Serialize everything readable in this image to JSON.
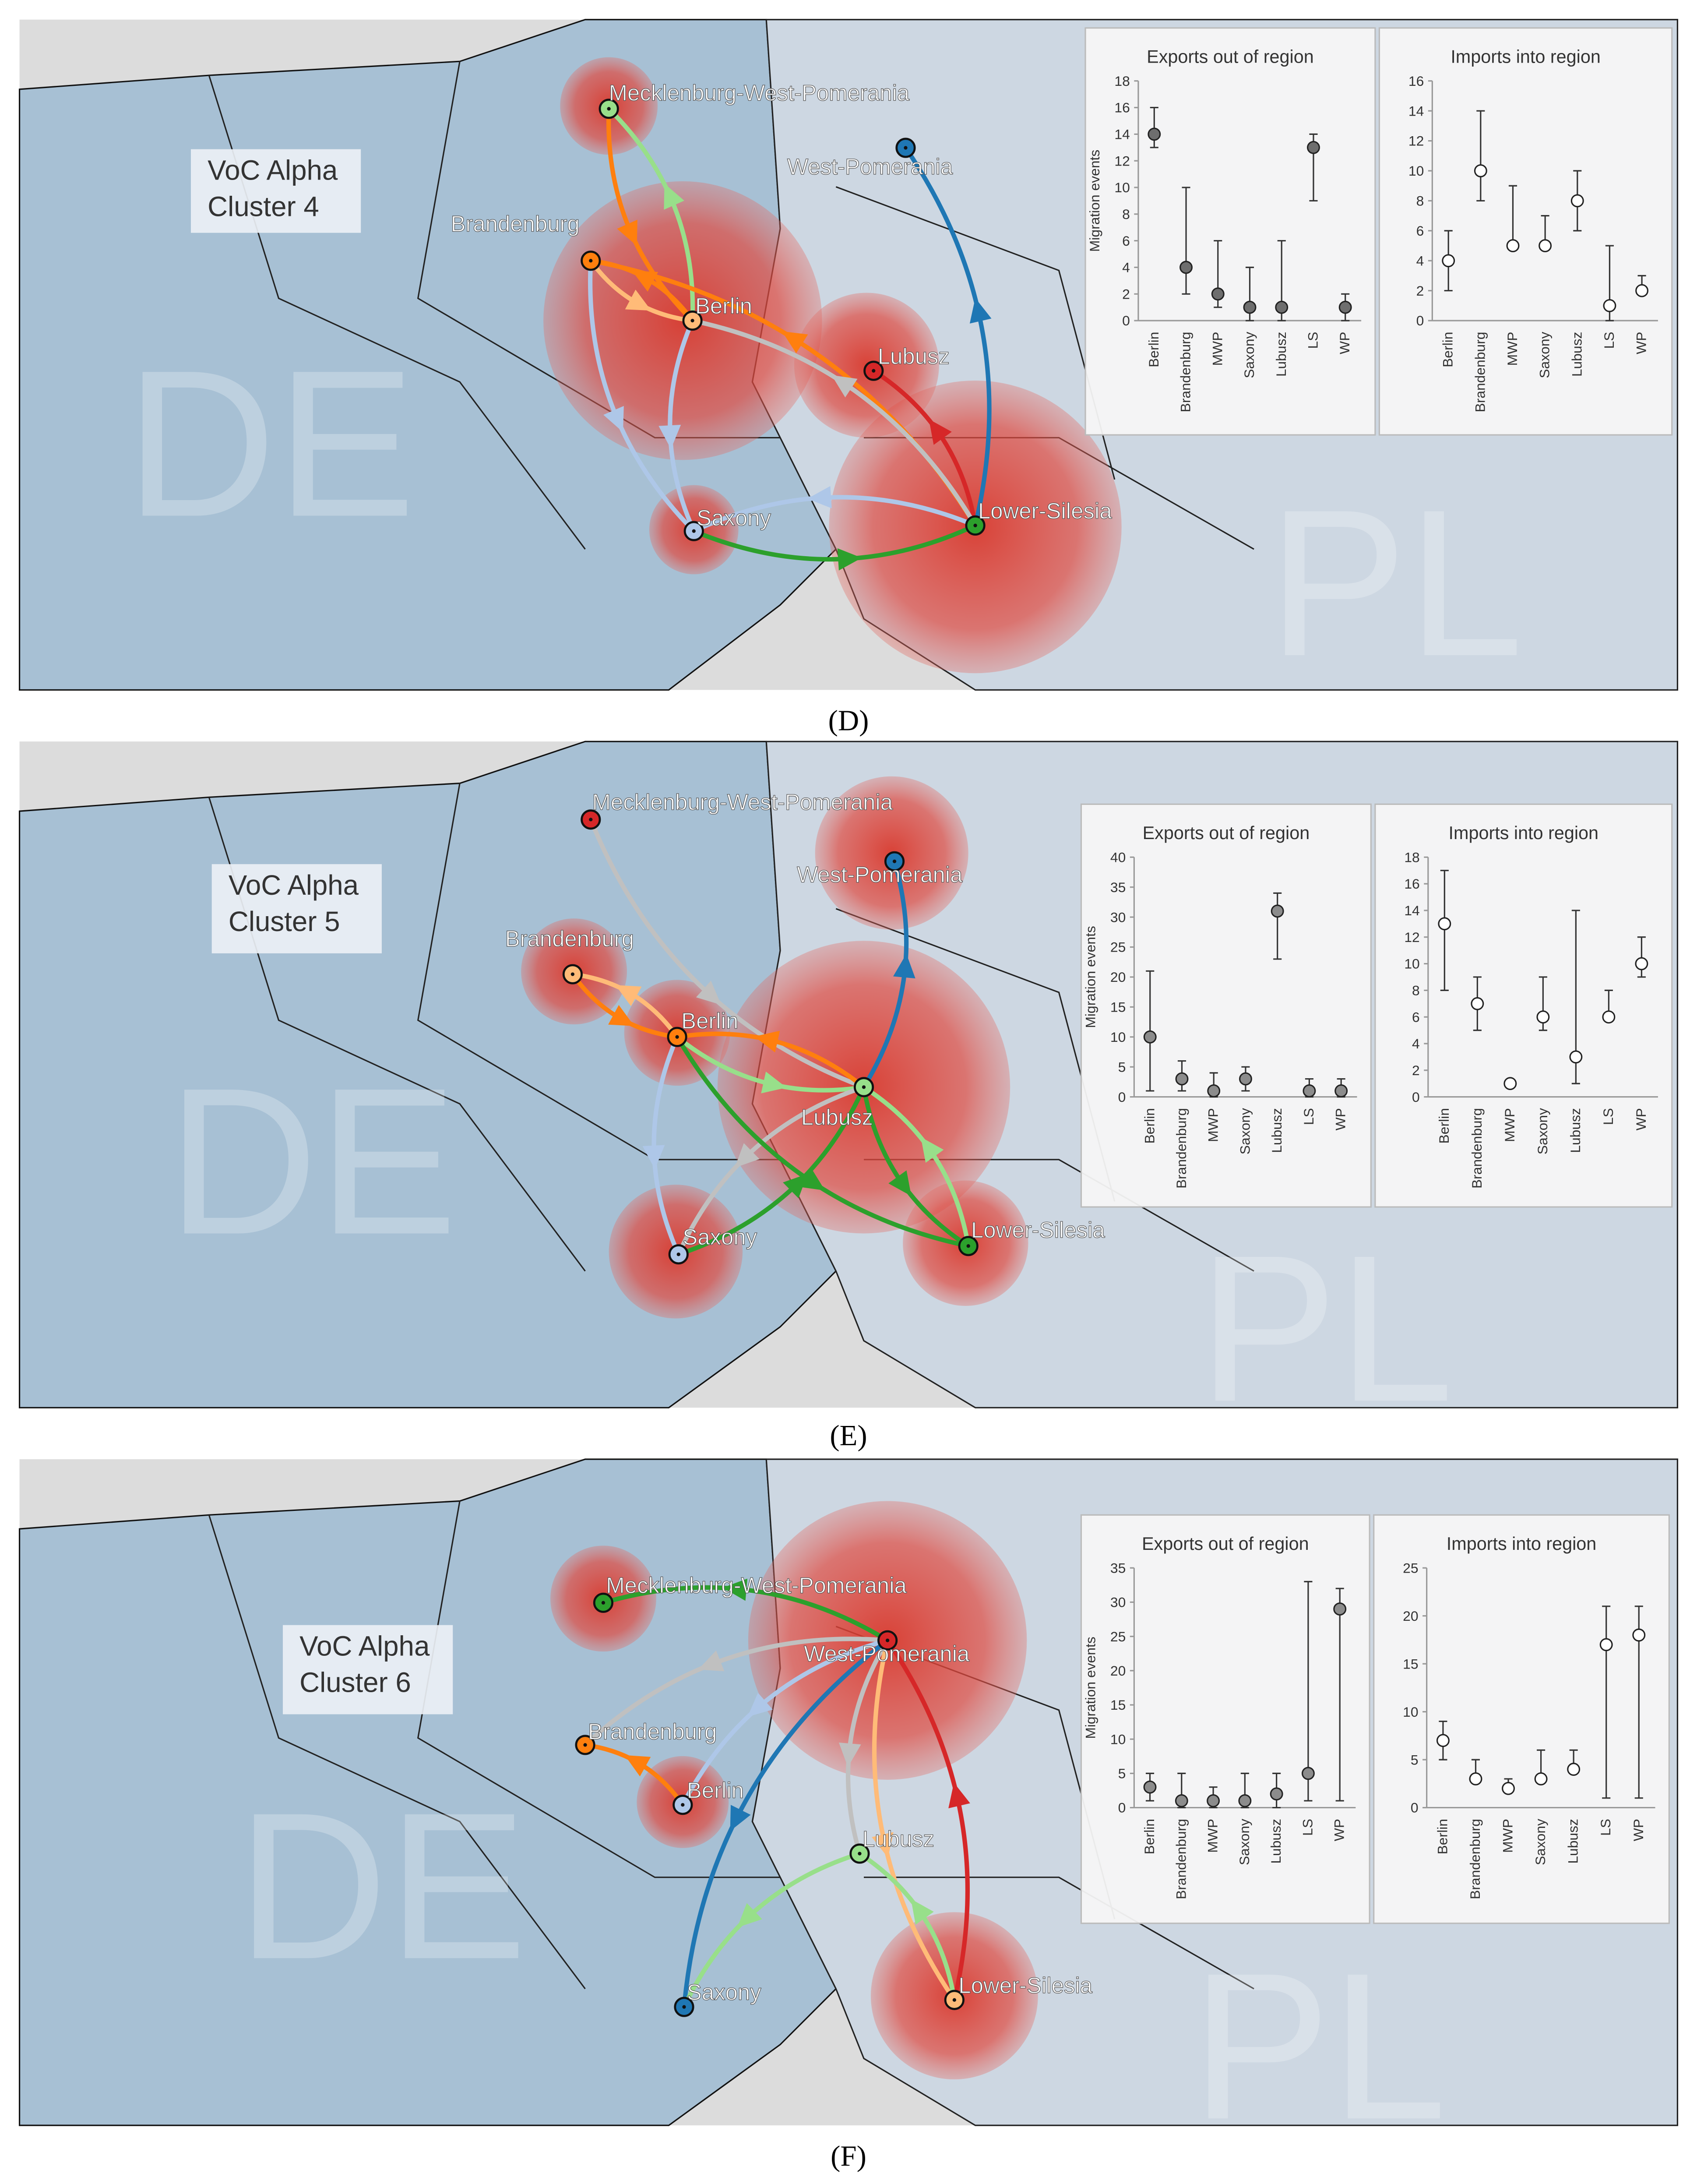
{
  "panels": [
    {
      "label": "(D)",
      "cluster": [
        "VoC Alpha",
        "Cluster 4"
      ],
      "countries": [
        "DE",
        "PL"
      ],
      "regions": [
        "Mecklenburg-West-Pomerania",
        "West-Pomerania",
        "Brandenburg",
        "Berlin",
        "Lubusz",
        "Saxony",
        "Lower-Silesia"
      ]
    },
    {
      "label": "(E)",
      "cluster": [
        "VoC Alpha",
        "Cluster 5"
      ],
      "countries": [
        "DE",
        "PL"
      ],
      "regions": [
        "Mecklenburg-West-Pomerania",
        "West-Pomerania",
        "Brandenburg",
        "Berlin",
        "Lubusz",
        "Saxony",
        "Lower-Silesia"
      ]
    },
    {
      "label": "(F)",
      "cluster": [
        "VoC Alpha",
        "Cluster 6"
      ],
      "countries": [
        "DE",
        "PL"
      ],
      "regions": [
        "Mecklenburg-West-Pomerania",
        "West-Pomerania",
        "Brandenburg",
        "Berlin",
        "Lubusz",
        "Saxony",
        "Lower-Silesia"
      ]
    }
  ],
  "chart_data": [
    {
      "type": "errorbar",
      "title": "Exports out of region",
      "ylabel": "Migration events",
      "color": "#6e6e6e",
      "categories": [
        "Berlin",
        "Brandenburg",
        "MWP",
        "Saxony",
        "Lubusz",
        "LS",
        "WP"
      ],
      "values": [
        14,
        4,
        2,
        1,
        1,
        13,
        1
      ],
      "lower": [
        13,
        2,
        1,
        0,
        0,
        9,
        0
      ],
      "upper": [
        16,
        10,
        6,
        4,
        6,
        14,
        2
      ],
      "ylim": [
        0,
        18
      ],
      "yticks": [
        0,
        2,
        4,
        6,
        8,
        10,
        12,
        14,
        16,
        18
      ]
    },
    {
      "type": "errorbar",
      "title": "Imports into region",
      "color": "#ffffff",
      "categories": [
        "Berlin",
        "Brandenburg",
        "MWP",
        "Saxony",
        "Lubusz",
        "LS",
        "WP"
      ],
      "values": [
        4,
        10,
        5,
        5,
        8,
        1,
        2
      ],
      "lower": [
        2,
        8,
        5,
        5,
        6,
        0,
        2
      ],
      "upper": [
        6,
        14,
        9,
        7,
        10,
        5,
        3
      ],
      "ylim": [
        0,
        16
      ],
      "yticks": [
        0,
        2,
        4,
        6,
        8,
        10,
        12,
        14,
        16
      ]
    },
    {
      "type": "errorbar",
      "title": "Exports out of region",
      "ylabel": "Migration events",
      "color": "#8c8c8c",
      "categories": [
        "Berlin",
        "Brandenburg",
        "MWP",
        "Saxony",
        "Lubusz",
        "LS",
        "WP"
      ],
      "values": [
        10,
        3,
        1,
        3,
        31,
        1,
        1
      ],
      "lower": [
        1,
        1,
        0,
        1,
        23,
        0,
        0
      ],
      "upper": [
        21,
        6,
        4,
        5,
        34,
        3,
        3
      ],
      "ylim": [
        0,
        40
      ],
      "yticks": [
        0,
        5,
        10,
        15,
        20,
        25,
        30,
        35,
        40
      ]
    },
    {
      "type": "errorbar",
      "title": "Imports into region",
      "color": "#ffffff",
      "categories": [
        "Berlin",
        "Brandenburg",
        "MWP",
        "Saxony",
        "Lubusz",
        "LS",
        "WP"
      ],
      "values": [
        13,
        7,
        1,
        6,
        3,
        6,
        10
      ],
      "lower": [
        8,
        5,
        1,
        5,
        1,
        6,
        9
      ],
      "upper": [
        17,
        9,
        1,
        9,
        14,
        8,
        12
      ],
      "ylim": [
        0,
        18
      ],
      "yticks": [
        0,
        2,
        4,
        6,
        8,
        10,
        12,
        14,
        16,
        18
      ]
    },
    {
      "type": "errorbar",
      "title": "Exports out of region",
      "ylabel": "Migration events",
      "color": "#8c8c8c",
      "categories": [
        "Berlin",
        "Brandenburg",
        "MWP",
        "Saxony",
        "Lubusz",
        "LS",
        "WP"
      ],
      "values": [
        3,
        1,
        1,
        1,
        2,
        5,
        29
      ],
      "lower": [
        1,
        0,
        0,
        0,
        0,
        1,
        1
      ],
      "upper": [
        5,
        5,
        3,
        5,
        5,
        33,
        32
      ],
      "ylim": [
        0,
        35
      ],
      "yticks": [
        0,
        5,
        10,
        15,
        20,
        25,
        30,
        35
      ]
    },
    {
      "type": "errorbar",
      "title": "Imports into region",
      "color": "#ffffff",
      "categories": [
        "Berlin",
        "Brandenburg",
        "MWP",
        "Saxony",
        "Lubusz",
        "LS",
        "WP"
      ],
      "values": [
        7,
        3,
        2,
        3,
        4,
        17,
        18
      ],
      "lower": [
        5,
        3,
        2,
        3,
        4,
        1,
        1
      ],
      "upper": [
        9,
        5,
        3,
        6,
        6,
        21,
        21
      ],
      "ylim": [
        0,
        25
      ],
      "yticks": [
        0,
        5,
        10,
        15,
        20,
        25
      ]
    }
  ]
}
